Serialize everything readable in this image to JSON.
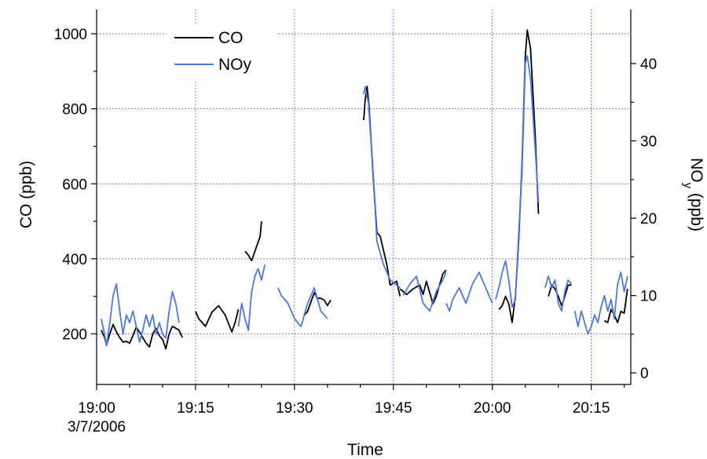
{
  "chart_data": {
    "type": "line",
    "title": "",
    "xlabel": "Time",
    "ylabel_left": "CO (ppb)",
    "ylabel_right_main": "NO",
    "ylabel_right_sub": "y",
    "ylabel_right_suffix": " (ppb)",
    "x_unit": "minutes",
    "xlim": [
      0,
      81
    ],
    "ylim_left": [
      65,
      1065
    ],
    "ylim_right": [
      -1.5,
      47
    ],
    "grid": true,
    "legend_position": "top-left",
    "x_ticks": [
      {
        "value": 0,
        "label": "19:00",
        "sublabel": "3/7/2006"
      },
      {
        "value": 15,
        "label": "19:15",
        "sublabel": ""
      },
      {
        "value": 30,
        "label": "19:30",
        "sublabel": ""
      },
      {
        "value": 45,
        "label": "19:45",
        "sublabel": ""
      },
      {
        "value": 60,
        "label": "20:00",
        "sublabel": ""
      },
      {
        "value": 75,
        "label": "20:15",
        "sublabel": ""
      }
    ],
    "y_ticks_left": [
      200,
      400,
      600,
      800,
      1000
    ],
    "y_ticks_right": [
      0,
      10,
      20,
      30,
      40
    ],
    "series": [
      {
        "name": "CO",
        "axis": "left",
        "color": "#000000",
        "segments": [
          [
            [
              0.7,
              210
            ],
            [
              1.2,
              190
            ],
            [
              1.5,
              170
            ],
            [
              2.0,
              200
            ],
            [
              2.5,
              225
            ],
            [
              3.0,
              205
            ],
            [
              3.5,
              190
            ],
            [
              4.0,
              178
            ],
            [
              4.5,
              180
            ],
            [
              5.0,
              175
            ],
            [
              5.5,
              195
            ],
            [
              6.0,
              218
            ],
            [
              6.5,
              205
            ],
            [
              7.0,
              190
            ],
            [
              7.5,
              175
            ],
            [
              8.0,
              165
            ],
            [
              8.5,
              200
            ],
            [
              9.0,
              215
            ],
            [
              9.5,
              195
            ],
            [
              10.0,
              185
            ],
            [
              10.5,
              160
            ],
            [
              11.0,
              200
            ],
            [
              11.5,
              220
            ],
            [
              12.0,
              215
            ],
            [
              12.5,
              210
            ],
            [
              13.0,
              190
            ]
          ],
          [
            [
              15.0,
              260
            ],
            [
              15.5,
              240
            ],
            [
              16.5,
              220
            ],
            [
              17.5,
              258
            ],
            [
              18.5,
              275
            ],
            [
              19.5,
              250
            ],
            [
              20.5,
              205
            ],
            [
              21.0,
              230
            ],
            [
              21.5,
              265
            ]
          ],
          [
            [
              22.5,
              420
            ],
            [
              23.0,
              410
            ],
            [
              23.5,
              395
            ],
            [
              24.0,
              420
            ],
            [
              24.8,
              460
            ],
            [
              25.0,
              500
            ]
          ],
          [
            [
              31.5,
              250
            ],
            [
              32.0,
              260
            ],
            [
              32.5,
              285
            ],
            [
              33.0,
              310
            ],
            [
              33.5,
              295
            ],
            [
              34.0,
              295
            ],
            [
              34.5,
              290
            ],
            [
              35.0,
              275
            ],
            [
              35.5,
              290
            ]
          ],
          [
            [
              40.5,
              770
            ],
            [
              40.7,
              820
            ],
            [
              41.0,
              860
            ],
            [
              41.3,
              810
            ],
            [
              42.0,
              600
            ],
            [
              42.5,
              470
            ],
            [
              43.0,
              460
            ],
            [
              44.0,
              385
            ],
            [
              44.5,
              330
            ],
            [
              45.5,
              340
            ],
            [
              46.0,
              300
            ]
          ],
          [
            [
              46.0,
              320
            ],
            [
              47.0,
              305
            ],
            [
              48.0,
              320
            ],
            [
              49.0,
              330
            ],
            [
              49.5,
              305
            ],
            [
              50.0,
              340
            ],
            [
              50.5,
              310
            ],
            [
              51.0,
              280
            ],
            [
              51.5,
              300
            ],
            [
              52.0,
              330
            ],
            [
              52.5,
              360
            ],
            [
              53.0,
              370
            ]
          ],
          [
            [
              61.0,
              265
            ],
            [
              61.5,
              275
            ],
            [
              62.0,
              300
            ],
            [
              62.5,
              280
            ],
            [
              63.0,
              230
            ],
            [
              63.5,
              300
            ],
            [
              64.0,
              450
            ],
            [
              64.5,
              650
            ],
            [
              65.0,
              940
            ],
            [
              65.3,
              1010
            ],
            [
              65.8,
              960
            ],
            [
              66.5,
              730
            ],
            [
              67.0,
              520
            ]
          ],
          [
            [
              68.5,
              300
            ],
            [
              69.0,
              330
            ],
            [
              69.5,
              320
            ],
            [
              70.0,
              300
            ],
            [
              70.5,
              275
            ],
            [
              71.0,
              300
            ],
            [
              71.5,
              330
            ],
            [
              72.0,
              330
            ]
          ],
          [
            [
              77.0,
              235
            ],
            [
              77.5,
              230
            ],
            [
              78.0,
              265
            ],
            [
              78.5,
              250
            ],
            [
              79.0,
              230
            ],
            [
              79.5,
              260
            ],
            [
              80.0,
              255
            ],
            [
              80.5,
              320
            ]
          ]
        ]
      },
      {
        "name": "NOy",
        "axis": "right",
        "color": "#4a78e6",
        "segments": [
          [
            [
              0.7,
              7.0
            ],
            [
              1.2,
              5.0
            ],
            [
              1.5,
              3.5
            ],
            [
              2.0,
              6.5
            ],
            [
              2.5,
              10.0
            ],
            [
              3.0,
              11.5
            ],
            [
              3.5,
              8.0
            ],
            [
              4.0,
              5.0
            ],
            [
              4.5,
              7.5
            ],
            [
              5.0,
              6.5
            ],
            [
              5.5,
              8.0
            ],
            [
              6.0,
              6.0
            ],
            [
              6.5,
              4.0
            ],
            [
              7.0,
              5.5
            ],
            [
              7.5,
              7.5
            ],
            [
              8.0,
              6.0
            ],
            [
              8.5,
              7.5
            ],
            [
              9.0,
              5.0
            ],
            [
              9.5,
              6.5
            ],
            [
              10.0,
              5.0
            ],
            [
              10.5,
              4.5
            ],
            [
              11.0,
              8.0
            ],
            [
              11.5,
              10.5
            ],
            [
              12.0,
              9.0
            ],
            [
              12.5,
              6.5
            ]
          ],
          [
            [
              21.5,
              6.0
            ],
            [
              22.0,
              9.0
            ],
            [
              22.5,
              7.0
            ],
            [
              23.0,
              5.5
            ],
            [
              23.5,
              10.5
            ],
            [
              24.0,
              12.5
            ],
            [
              24.5,
              13.5
            ],
            [
              25.0,
              12.0
            ],
            [
              25.5,
              14.0
            ]
          ],
          [
            [
              27.5,
              11.0
            ],
            [
              28.0,
              10.0
            ],
            [
              29.0,
              9.0
            ],
            [
              30.0,
              7.0
            ],
            [
              31.0,
              6.0
            ],
            [
              32.0,
              9.0
            ],
            [
              33.0,
              11.0
            ],
            [
              34.0,
              8.0
            ],
            [
              35.0,
              7.0
            ]
          ],
          [
            [
              40.5,
              36.0
            ],
            [
              40.7,
              37.0
            ],
            [
              41.2,
              35.0
            ],
            [
              42.0,
              25.0
            ],
            [
              42.5,
              17.0
            ],
            [
              43.5,
              14.0
            ],
            [
              44.5,
              12.0
            ],
            [
              46.0,
              11.0
            ]
          ],
          [
            [
              46.5,
              10.0
            ],
            [
              47.5,
              11.5
            ],
            [
              48.5,
              12.5
            ],
            [
              49.5,
              9.0
            ],
            [
              50.5,
              8.0
            ],
            [
              51.5,
              10.5
            ],
            [
              52.5,
              12.0
            ],
            [
              53.0,
              13.0
            ]
          ],
          [
            [
              53.0,
              9.0
            ],
            [
              53.5,
              8.0
            ],
            [
              54.0,
              9.5
            ],
            [
              55.0,
              11.0
            ],
            [
              56.0,
              9.0
            ],
            [
              57.0,
              11.5
            ],
            [
              58.0,
              13.0
            ],
            [
              59.0,
              11.0
            ],
            [
              60.0,
              9.0
            ]
          ],
          [
            [
              60.5,
              9.5
            ],
            [
              61.0,
              11.0
            ],
            [
              61.5,
              13.0
            ],
            [
              62.0,
              14.5
            ],
            [
              62.5,
              12.0
            ],
            [
              63.0,
              8.5
            ],
            [
              63.5,
              9.5
            ],
            [
              64.0,
              18.0
            ],
            [
              64.5,
              26.0
            ],
            [
              65.0,
              40.0
            ],
            [
              65.3,
              41.0
            ],
            [
              65.8,
              38.0
            ],
            [
              66.5,
              29.0
            ],
            [
              67.0,
              22.0
            ]
          ],
          [
            [
              68.0,
              11.0
            ],
            [
              68.5,
              12.5
            ],
            [
              69.0,
              11.0
            ],
            [
              69.5,
              12.0
            ],
            [
              70.0,
              9.0
            ],
            [
              70.5,
              8.0
            ],
            [
              71.0,
              10.5
            ],
            [
              71.5,
              12.0
            ],
            [
              72.0,
              11.5
            ]
          ],
          [
            [
              72.5,
              8.0
            ],
            [
              73.0,
              6.0
            ],
            [
              73.5,
              8.0
            ],
            [
              74.5,
              5.0
            ],
            [
              75.0,
              6.0
            ],
            [
              75.5,
              7.5
            ],
            [
              76.0,
              6.5
            ],
            [
              76.5,
              8.5
            ],
            [
              77.0,
              10.0
            ],
            [
              77.5,
              8.0
            ],
            [
              78.0,
              9.5
            ],
            [
              78.5,
              7.0
            ],
            [
              79.0,
              11.5
            ],
            [
              79.5,
              13.0
            ],
            [
              80.0,
              10.5
            ],
            [
              80.5,
              12.5
            ]
          ]
        ]
      }
    ],
    "legend": [
      {
        "label": "CO",
        "color": "#000000"
      },
      {
        "label": "NOy",
        "color": "#4a78e6"
      }
    ]
  }
}
